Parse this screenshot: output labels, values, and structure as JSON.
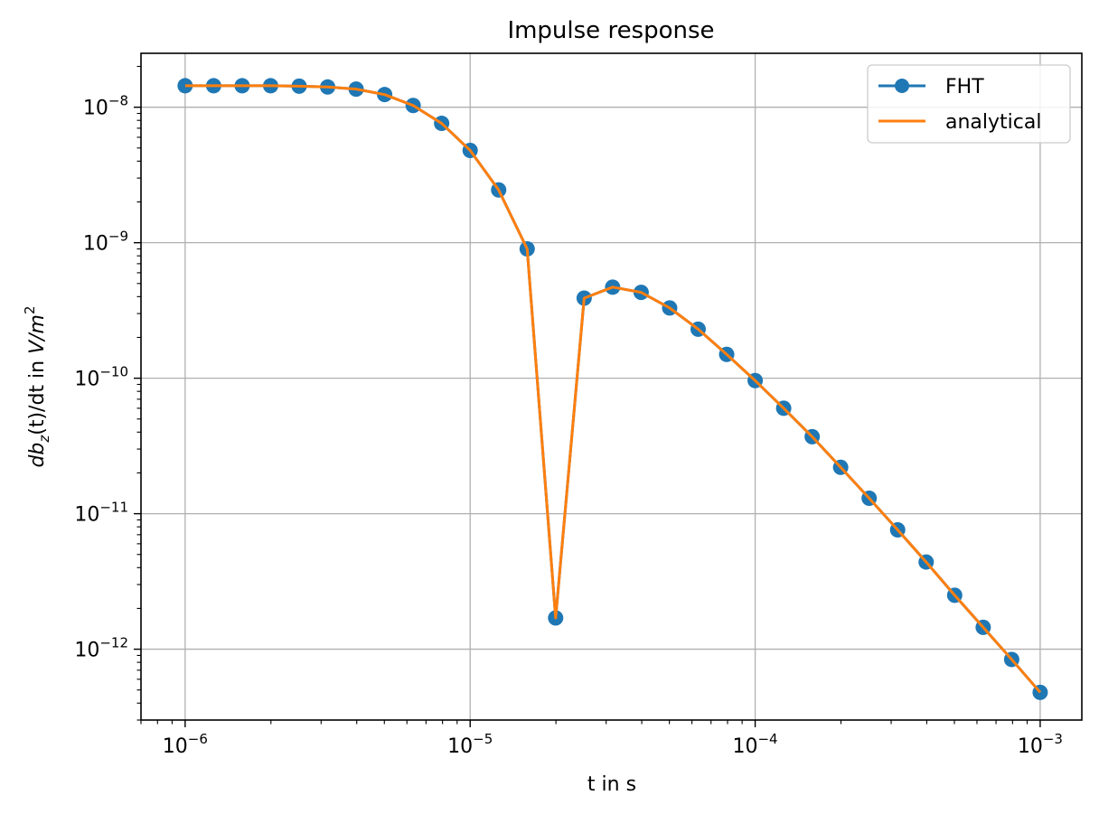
{
  "chart_data": {
    "type": "line",
    "title": "Impulse response",
    "xlabel": "t in s",
    "ylabel": {
      "prefix": "db",
      "sub": "z",
      "middle": "(t)/dt",
      "in": " in ",
      "unit_base": "V/m",
      "unit_exp": "2"
    },
    "xscale": "log",
    "yscale": "log",
    "xlim": [
      7e-07,
      0.0014
    ],
    "ylim": [
      3e-13,
      2.5e-08
    ],
    "grid": true,
    "legend_position": "top-right",
    "x_ticks": [
      {
        "base": "10",
        "exp": "−6",
        "value": 1e-06
      },
      {
        "base": "10",
        "exp": "−5",
        "value": 1e-05
      },
      {
        "base": "10",
        "exp": "−4",
        "value": 0.0001
      },
      {
        "base": "10",
        "exp": "−3",
        "value": 0.001
      }
    ],
    "y_ticks": [
      {
        "base": "10",
        "exp": "−8",
        "value": 1e-08
      },
      {
        "base": "10",
        "exp": "−9",
        "value": 1e-09
      },
      {
        "base": "10",
        "exp": "−10",
        "value": 1e-10
      },
      {
        "base": "10",
        "exp": "−11",
        "value": 1e-11
      },
      {
        "base": "10",
        "exp": "−12",
        "value": 1e-12
      }
    ],
    "x": [
      1e-06,
      1.259e-06,
      1.585e-06,
      1.995e-06,
      2.512e-06,
      3.162e-06,
      3.981e-06,
      5.012e-06,
      6.31e-06,
      7.943e-06,
      1e-05,
      1.259e-05,
      1.585e-05,
      1.995e-05,
      2.512e-05,
      3.162e-05,
      3.981e-05,
      5.012e-05,
      6.31e-05,
      7.943e-05,
      0.0001,
      0.0001259,
      0.0001585,
      0.0001995,
      0.0002512,
      0.0003162,
      0.0003981,
      0.0005012,
      0.000631,
      0.0007943,
      0.001
    ],
    "series": [
      {
        "name": "FHT",
        "color": "#1f77b4",
        "marker": "circle",
        "values": [
          1.44e-08,
          1.44e-08,
          1.44e-08,
          1.44e-08,
          1.43e-08,
          1.41e-08,
          1.36e-08,
          1.24e-08,
          1.03e-08,
          7.6e-09,
          4.8e-09,
          2.45e-09,
          9e-10,
          1.7e-12,
          3.9e-10,
          4.7e-10,
          4.3e-10,
          3.3e-10,
          2.3e-10,
          1.5e-10,
          9.6e-11,
          6e-11,
          3.7e-11,
          2.2e-11,
          1.3e-11,
          7.6e-12,
          4.4e-12,
          2.5e-12,
          1.45e-12,
          8.4e-13,
          4.8e-13
        ]
      },
      {
        "name": "analytical",
        "color": "#ff7f0e",
        "marker": "none",
        "values": [
          1.44e-08,
          1.44e-08,
          1.44e-08,
          1.44e-08,
          1.43e-08,
          1.41e-08,
          1.36e-08,
          1.24e-08,
          1.03e-08,
          7.6e-09,
          4.8e-09,
          2.45e-09,
          9e-10,
          1.7e-12,
          3.9e-10,
          4.7e-10,
          4.3e-10,
          3.3e-10,
          2.3e-10,
          1.5e-10,
          9.6e-11,
          6e-11,
          3.7e-11,
          2.2e-11,
          1.3e-11,
          7.6e-12,
          4.4e-12,
          2.5e-12,
          1.45e-12,
          8.4e-13,
          4.8e-13
        ]
      }
    ]
  }
}
